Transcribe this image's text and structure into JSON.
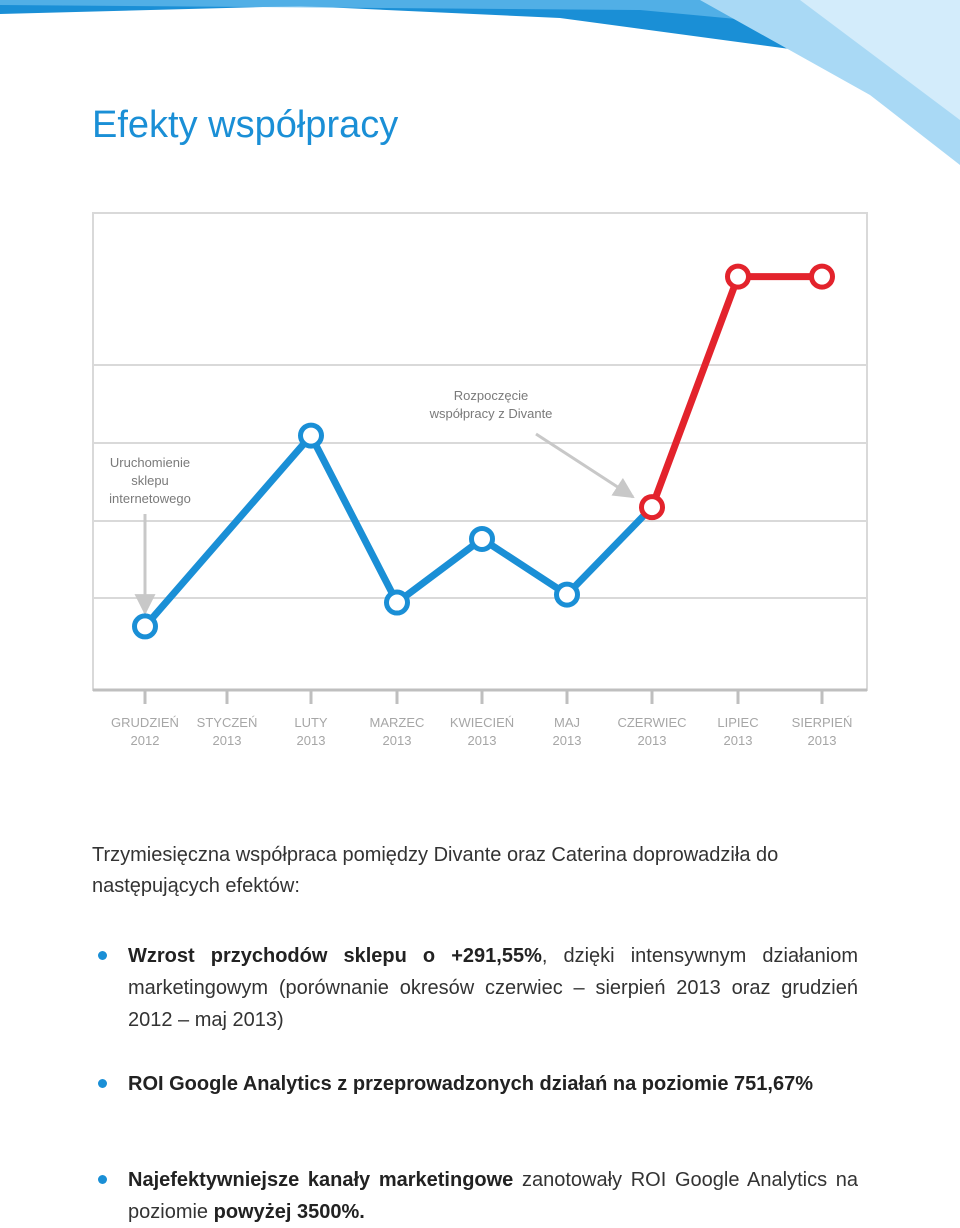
{
  "page": {
    "title": "Efekty współpracy"
  },
  "colors": {
    "accent": "#1a8fd6",
    "line_before": "#1a8fd6",
    "line_after": "#e3232c",
    "grid": "#d9d9d9",
    "tick_label": "#a6a6a6"
  },
  "chart_data": {
    "type": "line",
    "categories": [
      [
        "GRUDZIEŃ",
        "2012"
      ],
      [
        "STYCZEŃ",
        "2013"
      ],
      [
        "LUTY",
        "2013"
      ],
      [
        "MARZEC",
        "2013"
      ],
      [
        "KWIECIEŃ",
        "2013"
      ],
      [
        "MAJ",
        "2013"
      ],
      [
        "CZERWIEC",
        "2013"
      ],
      [
        "LIPIEC",
        "2013"
      ],
      [
        "SIERPIEŃ",
        "2013"
      ]
    ],
    "series": [
      {
        "values": [
          0.8,
          null,
          3.2,
          1.1,
          1.9,
          1.2,
          2.3,
          null,
          null
        ],
        "color": "#1a8fd6"
      },
      {
        "values": [
          null,
          null,
          null,
          null,
          null,
          null,
          2.3,
          5.2,
          5.2
        ],
        "color": "#e3232c"
      }
    ],
    "ylim": [
      0,
      6
    ],
    "grid": true,
    "y_axis_labels": false,
    "annotations": [
      {
        "lines": [
          "Uruchomienie",
          "sklepu",
          "internetowego"
        ],
        "category_index": 0
      },
      {
        "lines": [
          "Rozpoczęcie",
          "współpracy z Divante"
        ],
        "category_index": 6
      }
    ]
  },
  "text": {
    "intro": "Trzymiesięczna współpraca pomiędzy Divante oraz Caterina doprowadziła do następujących efektów:",
    "bullet1": {
      "bold": "Wzrost przychodów sklepu o +291,55%",
      "rest": ", dzięki intensywnym działaniom marketingowym (porównanie okresów czerwiec – sierpień 2013 oraz grudzień 2012 – maj 2013)"
    },
    "bullet2": {
      "bold": "ROI Google Analytics z przeprowadzonych działań na poziomie 751,67%"
    },
    "bullet3": {
      "bold": "Najefektywniejsze kanały marketingowe",
      "rest": " zanotowały ROI Google Analytics na poziomie ",
      "bold2": "powyżej 3500%."
    }
  }
}
